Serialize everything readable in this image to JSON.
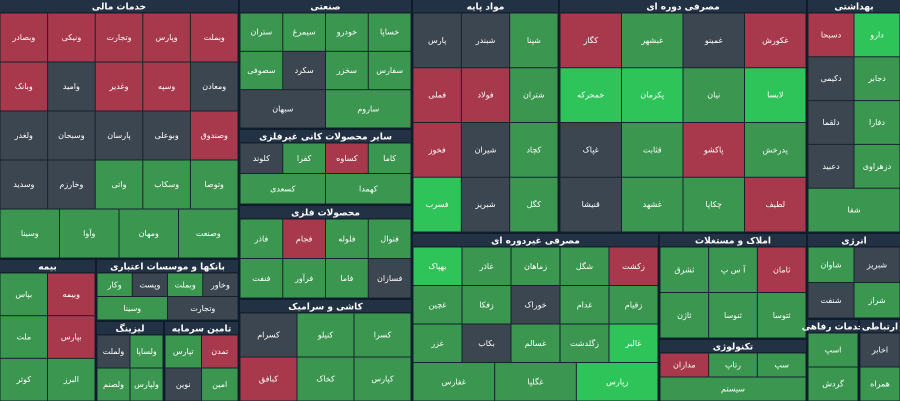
{
  "chart_data": {
    "type": "treemap",
    "palette": {
      "up": "#3b9650",
      "strong": "#2fc459",
      "down": "#a8384b",
      "flat": "#3c4650"
    },
    "sectors": [
      {
        "name": "خدمات مالی",
        "cells": [
          {
            "name": "وبملت",
            "state": "down"
          },
          {
            "name": "وپارس",
            "state": "down"
          },
          {
            "name": "وتجارت",
            "state": "down"
          },
          {
            "name": "ونیکی",
            "state": "down"
          },
          {
            "name": "وبصادر",
            "state": "down"
          },
          {
            "name": "ومعادن",
            "state": "flat"
          },
          {
            "name": "وسپه",
            "state": "down"
          },
          {
            "name": "وغدیر",
            "state": "down"
          },
          {
            "name": "وامید",
            "state": "flat"
          },
          {
            "name": "وبانک",
            "state": "down"
          },
          {
            "name": "وصندوق",
            "state": "down"
          },
          {
            "name": "وبوعلی",
            "state": "flat"
          },
          {
            "name": "پارسان",
            "state": "flat"
          },
          {
            "name": "وسبحان",
            "state": "flat"
          },
          {
            "name": "ولغدر",
            "state": "flat"
          },
          {
            "name": "وتوصا",
            "state": "up"
          },
          {
            "name": "وسکاب",
            "state": "up"
          },
          {
            "name": "واتی",
            "state": "up"
          },
          {
            "name": "وخارزم",
            "state": "flat"
          },
          {
            "name": "وسدید",
            "state": "flat"
          },
          {
            "name": "وصنعت",
            "state": "up"
          },
          {
            "name": "ومهان",
            "state": "up"
          },
          {
            "name": "وآوا",
            "state": "up"
          },
          {
            "name": "وسینا",
            "state": "up"
          }
        ]
      },
      {
        "name": "صنعتی",
        "cells": [
          {
            "name": "خساپا",
            "state": "up"
          },
          {
            "name": "خودرو",
            "state": "up"
          },
          {
            "name": "سیمرغ",
            "state": "up"
          },
          {
            "name": "ستران",
            "state": "up"
          },
          {
            "name": "سفارس",
            "state": "up"
          },
          {
            "name": "سخزر",
            "state": "up"
          },
          {
            "name": "سکرد",
            "state": "flat"
          },
          {
            "name": "سصوفی",
            "state": "up"
          },
          {
            "name": "ساروم",
            "state": "up"
          },
          {
            "name": "سبهان",
            "state": "flat"
          }
        ]
      },
      {
        "name": "مواد پایه",
        "cells": [
          {
            "name": "شپنا",
            "state": "up"
          },
          {
            "name": "شبندر",
            "state": "flat"
          },
          {
            "name": "پارس",
            "state": "flat"
          },
          {
            "name": "شتران",
            "state": "up"
          },
          {
            "name": "فولاد",
            "state": "down"
          },
          {
            "name": "فملی",
            "state": "down"
          },
          {
            "name": "کچاد",
            "state": "up"
          },
          {
            "name": "شیران",
            "state": "flat"
          },
          {
            "name": "فخوز",
            "state": "down"
          },
          {
            "name": "کگل",
            "state": "up"
          },
          {
            "name": "شبریز",
            "state": "flat"
          },
          {
            "name": "فسرب",
            "state": "strong"
          }
        ]
      },
      {
        "name": "مصرفی دوره ای",
        "cells": [
          {
            "name": "غکورش",
            "state": "down"
          },
          {
            "name": "غمینو",
            "state": "flat"
          },
          {
            "name": "غبشهر",
            "state": "up"
          },
          {
            "name": "کگاز",
            "state": "down"
          },
          {
            "name": "لابسا",
            "state": "strong"
          },
          {
            "name": "نیان",
            "state": "up"
          },
          {
            "name": "پکرمان",
            "state": "strong"
          },
          {
            "name": "خمحرکه",
            "state": "strong"
          },
          {
            "name": "پدرخش",
            "state": "up"
          },
          {
            "name": "پاکشو",
            "state": "down"
          },
          {
            "name": "قثابت",
            "state": "up"
          },
          {
            "name": "غپاک",
            "state": "flat"
          },
          {
            "name": "لطیف",
            "state": "down"
          },
          {
            "name": "چکاپا",
            "state": "up"
          },
          {
            "name": "غشهد",
            "state": "up"
          },
          {
            "name": "قنیشا",
            "state": "flat"
          }
        ]
      },
      {
        "name": "بهداشتی",
        "cells": [
          {
            "name": "دارو",
            "state": "strong"
          },
          {
            "name": "دسبحا",
            "state": "down"
          },
          {
            "name": "دجابر",
            "state": "up"
          },
          {
            "name": "دکیمی",
            "state": "flat"
          },
          {
            "name": "دفارا",
            "state": "up"
          },
          {
            "name": "دلقما",
            "state": "flat"
          },
          {
            "name": "دزهراوی",
            "state": "up"
          },
          {
            "name": "دعبید",
            "state": "flat"
          },
          {
            "name": "شفا",
            "state": "up"
          }
        ]
      },
      {
        "name": "انرژی",
        "cells": [
          {
            "name": "شبریز",
            "state": "flat"
          },
          {
            "name": "شاوان",
            "state": "up"
          },
          {
            "name": "شراز",
            "state": "up"
          },
          {
            "name": "شنفت",
            "state": "flat"
          }
        ]
      },
      {
        "name": "مصرفی غیردوره ای",
        "cells": [
          {
            "name": "زکشت",
            "state": "down"
          },
          {
            "name": "شگل",
            "state": "up"
          },
          {
            "name": "زماهان",
            "state": "up"
          },
          {
            "name": "غاذر",
            "state": "up"
          },
          {
            "name": "بهپاک",
            "state": "strong"
          },
          {
            "name": "زقیام",
            "state": "up"
          },
          {
            "name": "غدام",
            "state": "up"
          },
          {
            "name": "خوراک",
            "state": "flat"
          },
          {
            "name": "زفکا",
            "state": "up"
          },
          {
            "name": "غچین",
            "state": "up"
          },
          {
            "name": "غالبر",
            "state": "strong"
          },
          {
            "name": "زگلدشت",
            "state": "up"
          },
          {
            "name": "غسالم",
            "state": "up"
          },
          {
            "name": "بکاب",
            "state": "flat"
          },
          {
            "name": "غزر",
            "state": "up"
          },
          {
            "name": "زپارس",
            "state": "strong"
          },
          {
            "name": "غگلپا",
            "state": "up"
          },
          {
            "name": "غفارس",
            "state": "up"
          }
        ]
      },
      {
        "name": "املاک و مستغلات",
        "cells": [
          {
            "name": "ثامان",
            "state": "down"
          },
          {
            "name": "آ س پ",
            "state": "up"
          },
          {
            "name": "ثشرق",
            "state": "up"
          },
          {
            "name": "ثتوسا",
            "state": "up"
          },
          {
            "name": "ثنوسا",
            "state": "up"
          },
          {
            "name": "ثاژن",
            "state": "up"
          }
        ]
      },
      {
        "name": "تکنولوژی",
        "cells": [
          {
            "name": "سپ",
            "state": "up"
          },
          {
            "name": "رتاپ",
            "state": "up"
          },
          {
            "name": "مداران",
            "state": "down"
          },
          {
            "name": "سیستم",
            "state": "up"
          }
        ]
      },
      {
        "name": "خدمات رفاهی",
        "cells": [
          {
            "name": "اسپ",
            "state": "up"
          },
          {
            "name": "گردش",
            "state": "up"
          }
        ]
      },
      {
        "name": "ارتباطی",
        "cells": [
          {
            "name": "اخابر",
            "state": "flat"
          },
          {
            "name": "همراه",
            "state": "up"
          }
        ]
      },
      {
        "name": "بیمه",
        "cells": [
          {
            "name": "وبیمه",
            "state": "down"
          },
          {
            "name": "بپاس",
            "state": "up"
          },
          {
            "name": "بپارس",
            "state": "down"
          },
          {
            "name": "ملت",
            "state": "up"
          },
          {
            "name": "البرز",
            "state": "up"
          },
          {
            "name": "کوثر",
            "state": "up"
          }
        ]
      },
      {
        "name": "بانکها و موسسات اعتباری",
        "cells": [
          {
            "name": "وخاور",
            "state": "flat"
          },
          {
            "name": "وبملت",
            "state": "up"
          },
          {
            "name": "وپست",
            "state": "flat"
          },
          {
            "name": "وکار",
            "state": "up"
          },
          {
            "name": "وتجارت",
            "state": "flat"
          },
          {
            "name": "وسینا",
            "state": "up"
          }
        ]
      },
      {
        "name": "لیزینگ",
        "cells": [
          {
            "name": "ولساپا",
            "state": "up"
          },
          {
            "name": "ولملت",
            "state": "flat"
          },
          {
            "name": "ولپارس",
            "state": "up"
          },
          {
            "name": "ولصنم",
            "state": "up"
          }
        ]
      },
      {
        "name": "تامین سرمایه",
        "cells": [
          {
            "name": "تمدن",
            "state": "down"
          },
          {
            "name": "تپارس",
            "state": "up"
          },
          {
            "name": "امین",
            "state": "up"
          },
          {
            "name": "نوین",
            "state": "flat"
          }
        ]
      },
      {
        "name": "سایر محصولات کانی غیرفلزی",
        "cells": [
          {
            "name": "کاما",
            "state": "up"
          },
          {
            "name": "کساوه",
            "state": "down"
          },
          {
            "name": "کفرا",
            "state": "up"
          },
          {
            "name": "کلوند",
            "state": "flat"
          },
          {
            "name": "کهمدا",
            "state": "up"
          },
          {
            "name": "کسعدی",
            "state": "up"
          }
        ]
      },
      {
        "name": "محصولات فلزی",
        "cells": [
          {
            "name": "فنوال",
            "state": "up"
          },
          {
            "name": "فلوله",
            "state": "up"
          },
          {
            "name": "فجام",
            "state": "down"
          },
          {
            "name": "فاذر",
            "state": "up"
          },
          {
            "name": "فسازان",
            "state": "flat"
          },
          {
            "name": "فاما",
            "state": "up"
          },
          {
            "name": "فرآور",
            "state": "up"
          },
          {
            "name": "فنفت",
            "state": "up"
          }
        ]
      },
      {
        "name": "کاشی و سرامیک",
        "cells": [
          {
            "name": "کسرا",
            "state": "up"
          },
          {
            "name": "کنیلو",
            "state": "up"
          },
          {
            "name": "کسرام",
            "state": "flat"
          },
          {
            "name": "کپارس",
            "state": "up"
          },
          {
            "name": "کخاک",
            "state": "up"
          },
          {
            "name": "کبافق",
            "state": "down"
          }
        ]
      }
    ]
  }
}
